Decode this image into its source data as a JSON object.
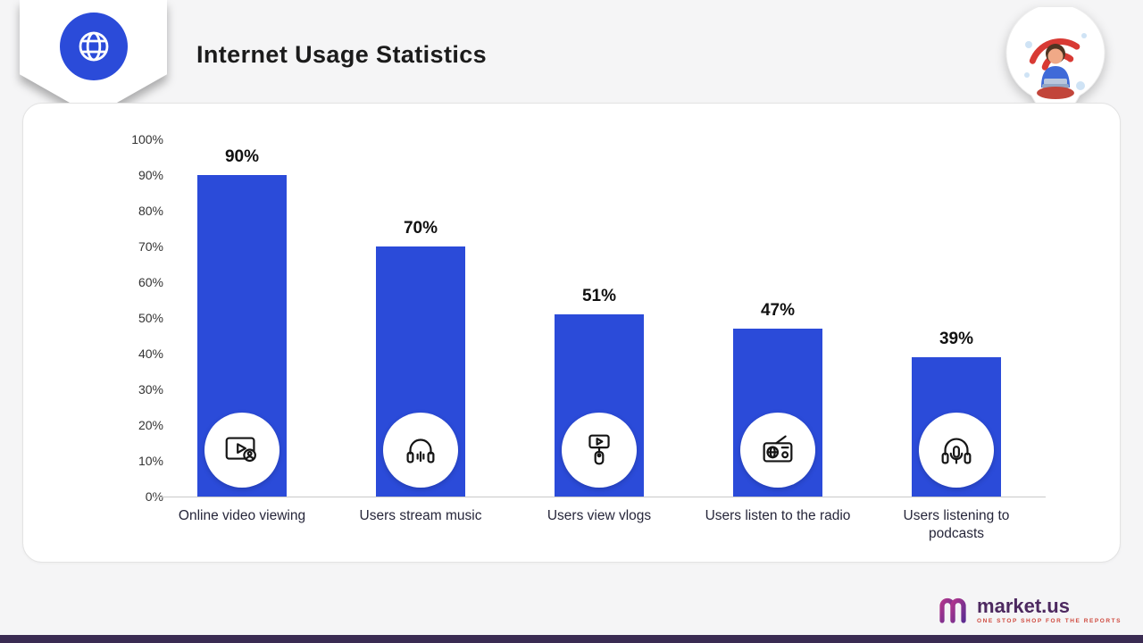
{
  "header": {
    "title": "Internet Usage Statistics"
  },
  "chart_data": {
    "type": "bar",
    "title": "Internet Usage Statistics",
    "categories": [
      "Online video viewing",
      "Users stream music",
      "Users view vlogs",
      "Users listen to the radio",
      "Users listening to podcasts"
    ],
    "values": [
      90,
      70,
      51,
      47,
      39
    ],
    "value_labels": [
      "90%",
      "70%",
      "51%",
      "47%",
      "39%"
    ],
    "y_ticks": [
      "100%",
      "90%",
      "80%",
      "70%",
      "60%",
      "50%",
      "40%",
      "30%",
      "20%",
      "10%",
      "0%"
    ],
    "ylim": [
      0,
      100
    ],
    "xlabel": "",
    "ylabel": "",
    "grid": false,
    "legend": false,
    "bar_color": "#2b4bd9",
    "icons": [
      "video-play-icon",
      "headphones-music-icon",
      "vlog-selfie-camera-icon",
      "radio-icon",
      "podcast-headset-mic-icon"
    ]
  },
  "footer": {
    "logo_text": "market.us",
    "tagline": "ONE STOP SHOP FOR THE REPORTS"
  },
  "colors": {
    "bar": "#2b4bd9",
    "badge_circle": "#2b4bd9",
    "bottom_strip": "#3a2b52",
    "logo_purple": "#8d2f8d",
    "wifi_red": "#d83a34"
  }
}
